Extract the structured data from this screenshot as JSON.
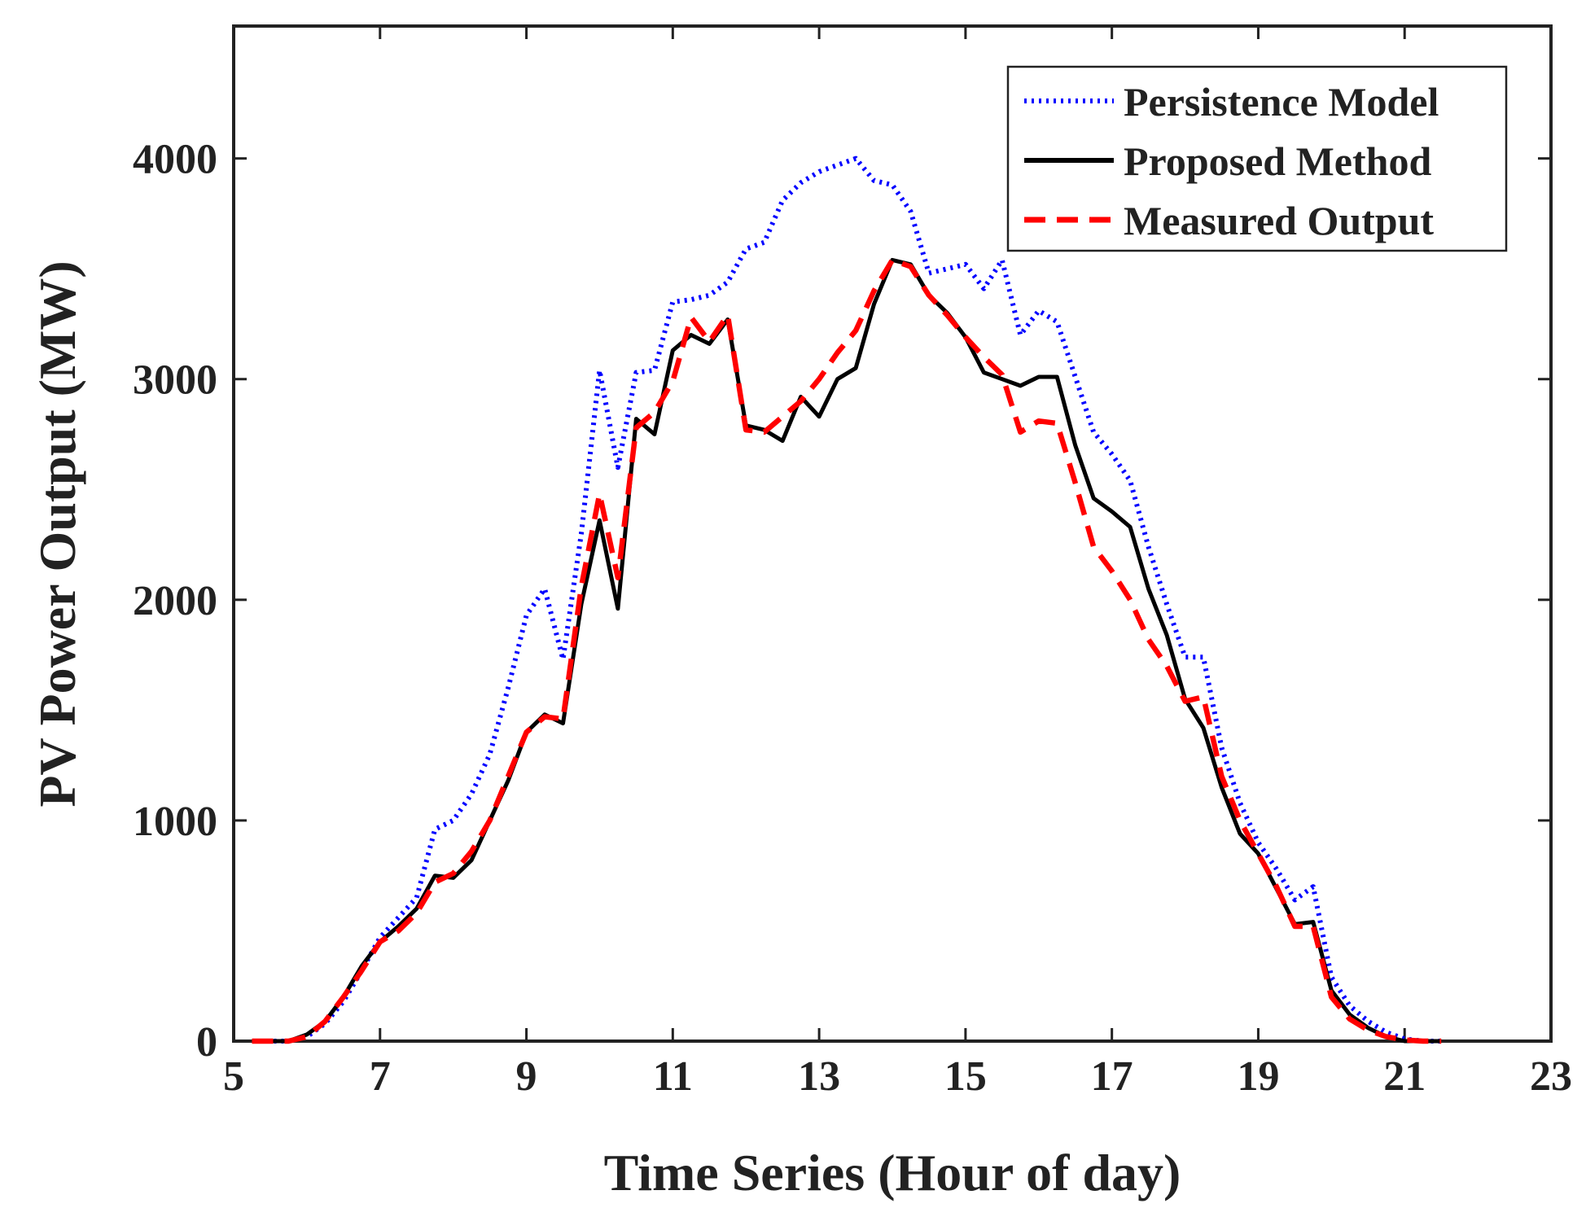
{
  "chart_data": {
    "type": "line",
    "title": "",
    "xlabel": "Time Series (Hour of day)",
    "ylabel": "PV Power Output (MW)",
    "xlim": [
      5,
      23
    ],
    "ylim": [
      0,
      4600
    ],
    "xticks": [
      5,
      7,
      9,
      11,
      13,
      15,
      17,
      19,
      21,
      23
    ],
    "yticks": [
      0,
      1000,
      2000,
      3000,
      4000
    ],
    "grid": false,
    "legend_position": "top-right",
    "series": [
      {
        "name": "Persistence Model",
        "color": "#0000ff",
        "style": "dotted",
        "x": [
          5.25,
          5.5,
          5.75,
          6.0,
          6.25,
          6.5,
          6.75,
          7.0,
          7.25,
          7.5,
          7.75,
          8.0,
          8.25,
          8.5,
          8.75,
          9.0,
          9.25,
          9.5,
          9.75,
          10.0,
          10.25,
          10.5,
          10.75,
          11.0,
          11.25,
          11.5,
          11.75,
          12.0,
          12.25,
          12.5,
          12.75,
          13.0,
          13.25,
          13.5,
          13.75,
          14.0,
          14.25,
          14.5,
          14.75,
          15.0,
          15.25,
          15.5,
          15.75,
          16.0,
          16.25,
          16.5,
          16.75,
          17.0,
          17.25,
          17.5,
          17.75,
          18.0,
          18.25,
          18.5,
          18.75,
          19.0,
          19.25,
          19.5,
          19.75,
          20.0,
          20.25,
          20.5,
          20.75,
          21.0,
          21.25,
          21.5
        ],
        "y": [
          0,
          0,
          0,
          20,
          80,
          180,
          320,
          470,
          560,
          650,
          960,
          1000,
          1120,
          1300,
          1600,
          1930,
          2050,
          1730,
          2300,
          3040,
          2600,
          3030,
          3040,
          3350,
          3360,
          3380,
          3440,
          3590,
          3620,
          3810,
          3890,
          3940,
          3970,
          4000,
          3900,
          3880,
          3760,
          3480,
          3500,
          3520,
          3410,
          3540,
          3200,
          3310,
          3260,
          3010,
          2760,
          2660,
          2540,
          2240,
          1980,
          1740,
          1740,
          1330,
          1080,
          900,
          780,
          640,
          700,
          290,
          160,
          90,
          40,
          10,
          0,
          0
        ]
      },
      {
        "name": "Proposed Method",
        "color": "#000000",
        "style": "solid",
        "x": [
          5.25,
          5.5,
          5.75,
          6.0,
          6.25,
          6.5,
          6.75,
          7.0,
          7.25,
          7.5,
          7.75,
          8.0,
          8.25,
          8.5,
          8.75,
          9.0,
          9.25,
          9.5,
          9.75,
          10.0,
          10.25,
          10.5,
          10.75,
          11.0,
          11.25,
          11.5,
          11.75,
          12.0,
          12.25,
          12.5,
          12.75,
          13.0,
          13.25,
          13.5,
          13.75,
          14.0,
          14.25,
          14.5,
          14.75,
          15.0,
          15.25,
          15.5,
          15.75,
          16.0,
          16.25,
          16.5,
          16.75,
          17.0,
          17.25,
          17.5,
          17.75,
          18.0,
          18.25,
          18.5,
          18.75,
          19.0,
          19.25,
          19.5,
          19.75,
          20.0,
          20.25,
          20.5,
          20.75,
          21.0,
          21.25,
          21.5
        ],
        "y": [
          0,
          0,
          0,
          30,
          90,
          200,
          340,
          450,
          520,
          600,
          750,
          740,
          820,
          1000,
          1180,
          1400,
          1480,
          1440,
          1980,
          2360,
          1960,
          2820,
          2750,
          3130,
          3200,
          3160,
          3270,
          2790,
          2770,
          2720,
          2920,
          2830,
          3000,
          3050,
          3340,
          3540,
          3520,
          3380,
          3300,
          3190,
          3030,
          3000,
          2970,
          3010,
          3010,
          2700,
          2460,
          2400,
          2330,
          2050,
          1840,
          1550,
          1420,
          1150,
          940,
          850,
          690,
          530,
          540,
          230,
          120,
          60,
          20,
          0,
          0,
          0
        ]
      },
      {
        "name": "Measured Output",
        "color": "#ff0000",
        "style": "dashed",
        "x": [
          5.25,
          5.5,
          5.75,
          6.0,
          6.25,
          6.5,
          6.75,
          7.0,
          7.25,
          7.5,
          7.75,
          8.0,
          8.25,
          8.5,
          8.75,
          9.0,
          9.25,
          9.5,
          9.75,
          10.0,
          10.25,
          10.5,
          10.75,
          11.0,
          11.25,
          11.5,
          11.75,
          12.0,
          12.25,
          12.5,
          12.75,
          13.0,
          13.25,
          13.5,
          13.75,
          14.0,
          14.25,
          14.5,
          14.75,
          15.0,
          15.25,
          15.5,
          15.75,
          16.0,
          16.25,
          16.5,
          16.75,
          17.0,
          17.25,
          17.5,
          17.75,
          18.0,
          18.25,
          18.5,
          18.75,
          19.0,
          19.25,
          19.5,
          19.75,
          20.0,
          20.25,
          20.5,
          20.75,
          21.0,
          21.25,
          21.5
        ],
        "y": [
          0,
          0,
          0,
          20,
          90,
          200,
          320,
          450,
          500,
          580,
          720,
          760,
          860,
          1000,
          1200,
          1400,
          1470,
          1460,
          2060,
          2480,
          2100,
          2780,
          2850,
          2990,
          3280,
          3170,
          3290,
          2770,
          2760,
          2830,
          2900,
          3000,
          3120,
          3220,
          3400,
          3540,
          3510,
          3380,
          3290,
          3190,
          3100,
          3020,
          2760,
          2810,
          2800,
          2530,
          2240,
          2130,
          2000,
          1820,
          1700,
          1540,
          1560,
          1200,
          1000,
          850,
          700,
          520,
          520,
          200,
          100,
          50,
          20,
          5,
          0,
          0
        ]
      }
    ]
  }
}
